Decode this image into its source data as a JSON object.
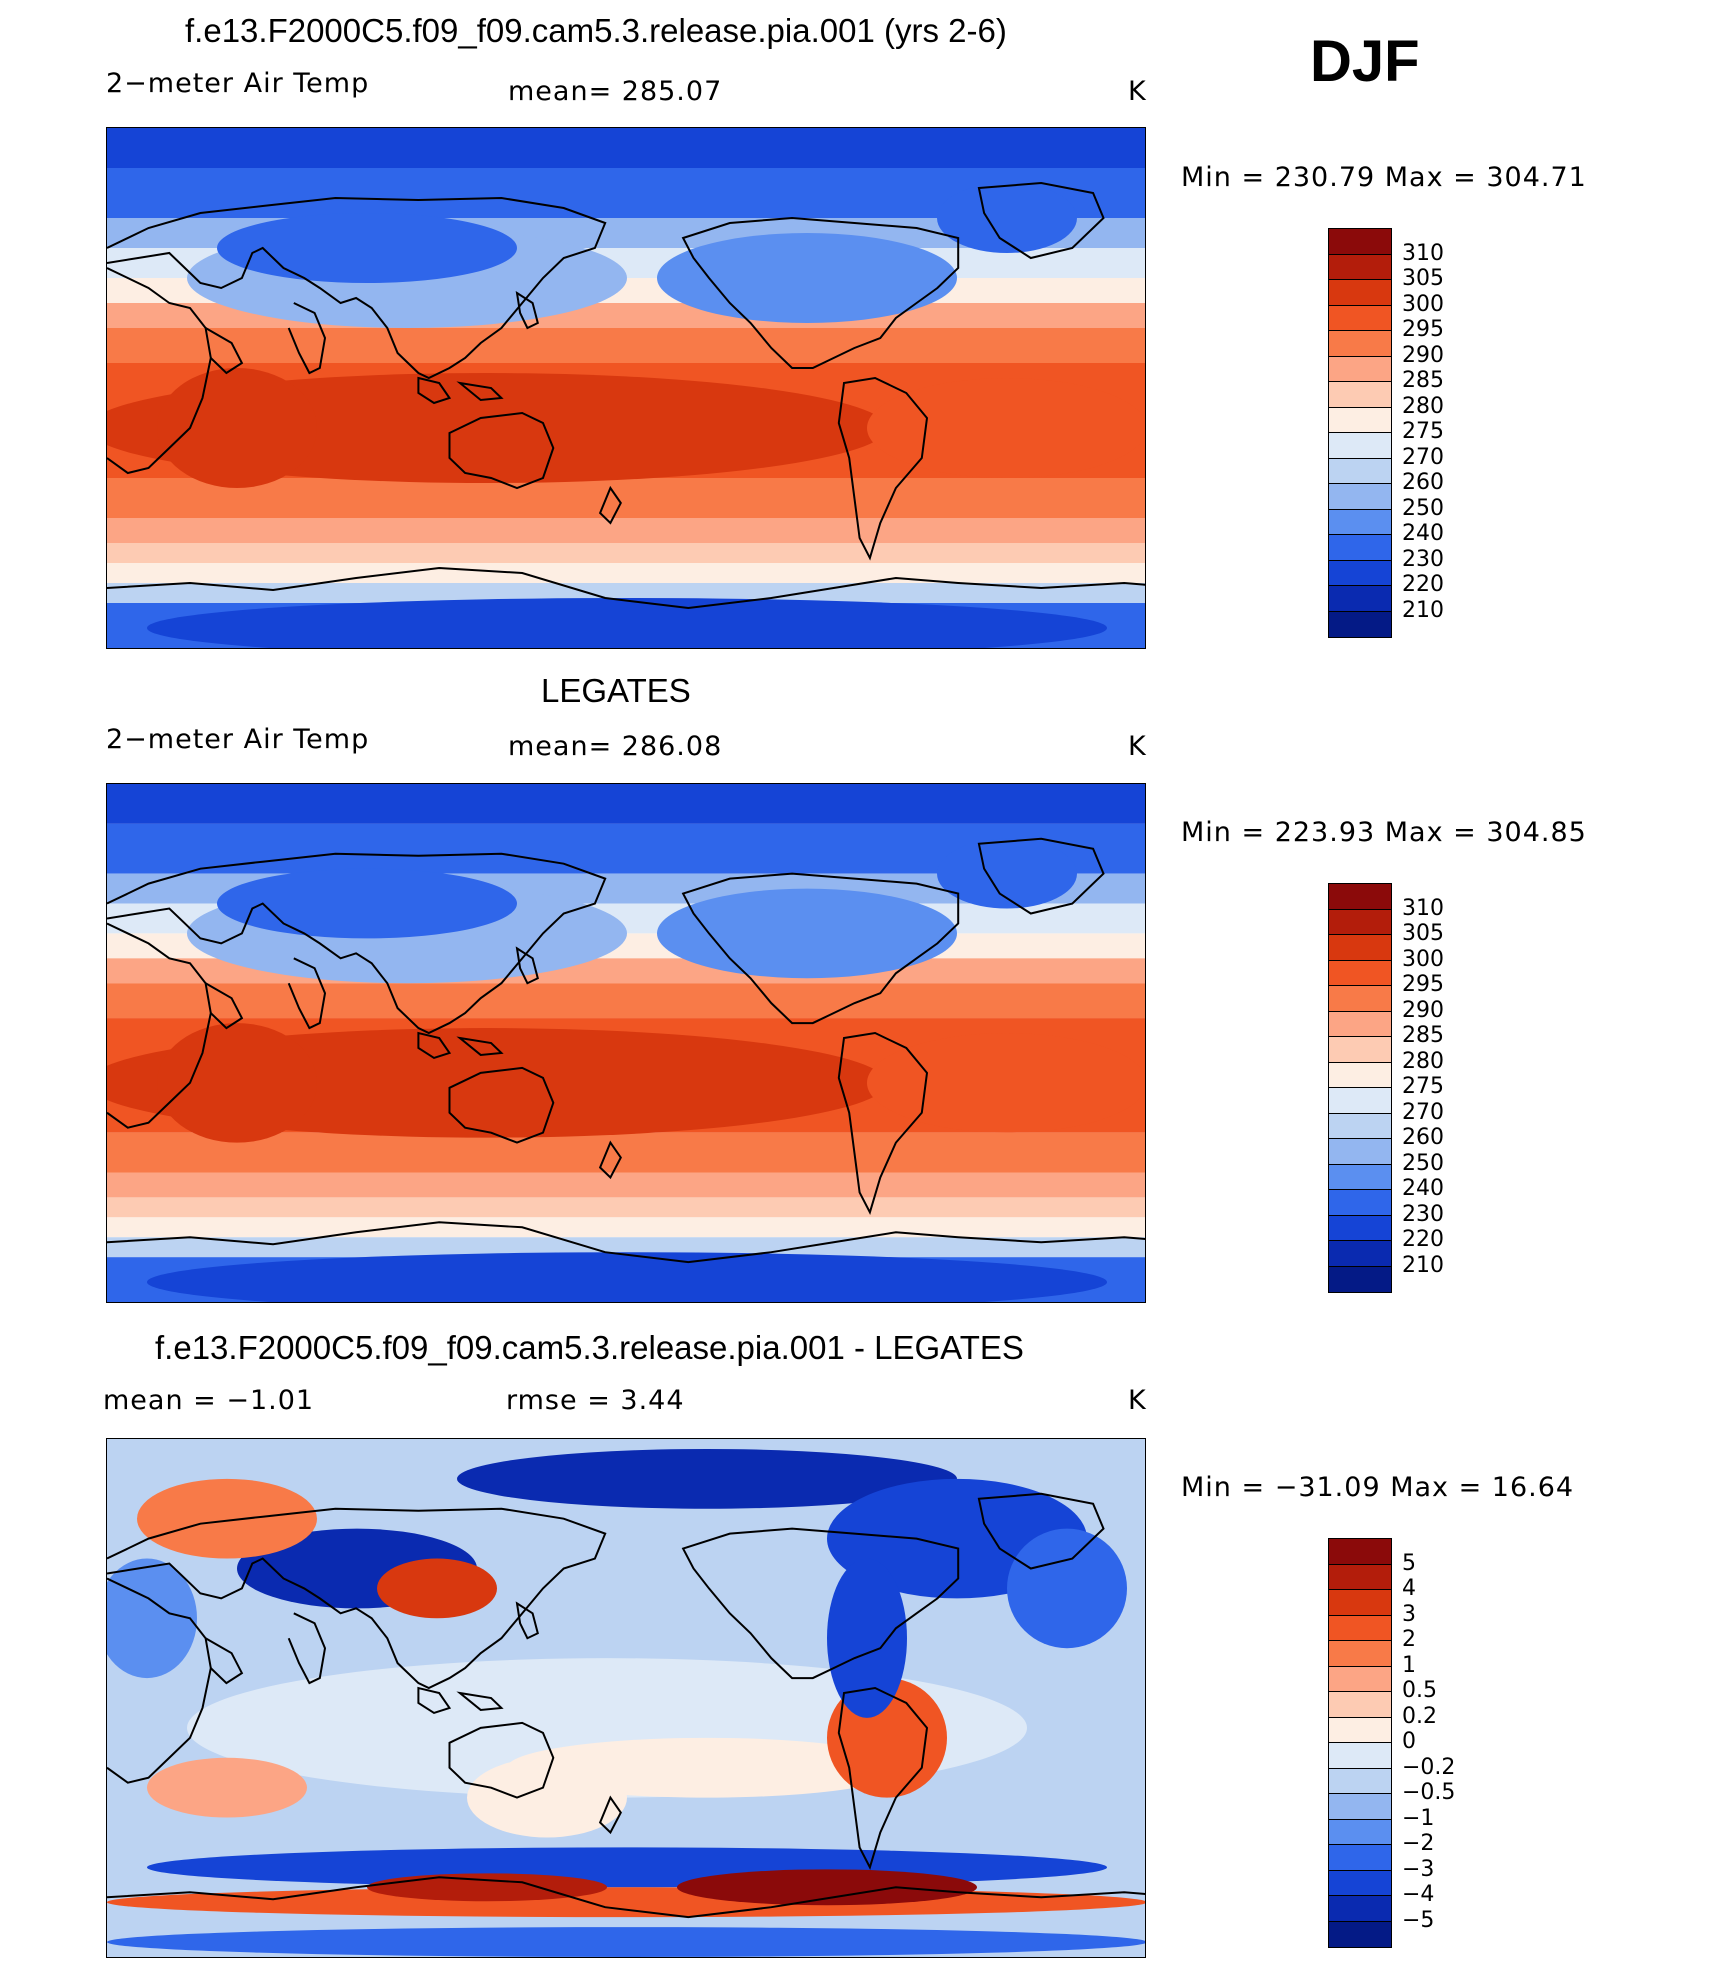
{
  "season": "DJF",
  "panels": [
    {
      "title": "f.e13.F2000C5.f09_f09.cam5.3.release.pia.001 (yrs 2-6)",
      "left_label": "2−meter Air Temp",
      "center_label": "mean=  285.07",
      "units": "K",
      "minmax": "Min  =  230.79  Max  =  304.71",
      "field": "model",
      "levels": [
        "310",
        "305",
        "300",
        "295",
        "290",
        "285",
        "280",
        "275",
        "270",
        "260",
        "250",
        "240",
        "230",
        "220",
        "210"
      ],
      "colors": [
        "#8b0a0a",
        "#b31d0b",
        "#d8380f",
        "#f05523",
        "#f87a48",
        "#fca585",
        "#fdcbb3",
        "#fdeee3",
        "#dde9f7",
        "#bcd3f2",
        "#93b6f0",
        "#5b8ff0",
        "#2f66ea",
        "#1544d6",
        "#0a2ab0",
        "#041a86"
      ]
    },
    {
      "title": "LEGATES",
      "left_label": "2−meter Air Temp",
      "center_label": "mean=  286.08",
      "units": "K",
      "minmax": "Min  =  223.93  Max  =  304.85",
      "field": "obs",
      "levels": [
        "310",
        "305",
        "300",
        "295",
        "290",
        "285",
        "280",
        "275",
        "270",
        "260",
        "250",
        "240",
        "230",
        "220",
        "210"
      ],
      "colors": [
        "#8b0a0a",
        "#b31d0b",
        "#d8380f",
        "#f05523",
        "#f87a48",
        "#fca585",
        "#fdcbb3",
        "#fdeee3",
        "#dde9f7",
        "#bcd3f2",
        "#93b6f0",
        "#5b8ff0",
        "#2f66ea",
        "#1544d6",
        "#0a2ab0",
        "#041a86"
      ]
    },
    {
      "title": "f.e13.F2000C5.f09_f09.cam5.3.release.pia.001 - LEGATES",
      "left_label": "mean  =    −1.01",
      "center_label": "rmse  =     3.44",
      "units": "K",
      "minmax": "Min  =  −31.09  Max  =    16.64",
      "field": "diff",
      "levels": [
        "5",
        "4",
        "3",
        "2",
        "1",
        "0.5",
        "0.2",
        "0",
        "−0.2",
        "−0.5",
        "−1",
        "−2",
        "−3",
        "−4",
        "−5"
      ],
      "colors": [
        "#8b0a0a",
        "#b31d0b",
        "#d8380f",
        "#f05523",
        "#f87a48",
        "#fca585",
        "#fdcbb3",
        "#fdeee3",
        "#dde9f7",
        "#bcd3f2",
        "#93b6f0",
        "#5b8ff0",
        "#2f66ea",
        "#1544d6",
        "#0a2ab0",
        "#041a86"
      ]
    }
  ]
}
